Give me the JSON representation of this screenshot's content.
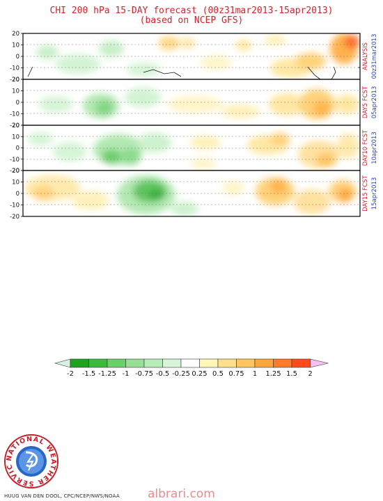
{
  "header": {
    "title": "CHI 200 hPa 15-DAY forecast (00z31mar2013-15apr2013)",
    "subtitle": "(based on NCEP GFS)"
  },
  "panels": [
    {
      "label_red": "ANALYSIS",
      "label_blue": "00z31mar2013"
    },
    {
      "label_red": "DAY5 FCST",
      "label_blue": "05apr2013"
    },
    {
      "label_red": "DAY10 FCST",
      "label_blue": "10apr2013"
    },
    {
      "label_red": "DAY15 FCST",
      "label_blue": "15apr2013"
    }
  ],
  "lat_ticks": [
    "20",
    "10",
    "0",
    "-10",
    "-20"
  ],
  "colorbar": {
    "labels": [
      "-2",
      "-1.5",
      "-1.25",
      "-1",
      "-0.75",
      "-0.5",
      "-0.25",
      "0.25",
      "0.5",
      "0.75",
      "1",
      "1.25",
      "1.5",
      "2"
    ],
    "colors": [
      "#d8f2e0",
      "#1fa31f",
      "#3cbc3c",
      "#6ad06a",
      "#96e096",
      "#b8ecb8",
      "#d8f5d8",
      "#ffffff",
      "#fff7b6",
      "#ffe08a",
      "#ffc55e",
      "#ffa63a",
      "#ff7a26",
      "#ff4a1a",
      "#f5c0ef"
    ]
  },
  "logo": {
    "text": "NATIONAL WEATHER SERVICE"
  },
  "credit": "HUUG VAN DEN DOOL, CPC/NCEP/NWS/NOAA",
  "watermark": "albrari.com"
}
